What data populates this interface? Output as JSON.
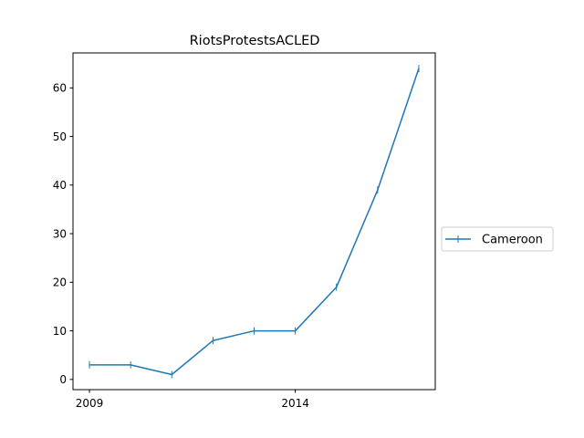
{
  "chart_data": {
    "type": "line",
    "title": "RiotsProtestsACLED",
    "xlabel": "",
    "ylabel": "",
    "x": [
      2009,
      2010,
      2011,
      2012,
      2013,
      2014,
      2015,
      2016,
      2017
    ],
    "x_tick_labels": [
      "2009",
      "2014"
    ],
    "x_ticks": [
      2009,
      2014
    ],
    "y_ticks": [
      0,
      10,
      20,
      30,
      40,
      50,
      60
    ],
    "y_tick_labels": [
      "0",
      "10",
      "20",
      "30",
      "40",
      "50",
      "60"
    ],
    "xlim": [
      2008.6,
      2017.4
    ],
    "ylim": [
      -2.1,
      67.2
    ],
    "grid": false,
    "legend_position": "right-outside",
    "series": [
      {
        "name": "Cameroon",
        "color": "#1f77b4",
        "marker": "vertical-line",
        "values": [
          3,
          3,
          1,
          8,
          10,
          10,
          19,
          39,
          64
        ]
      }
    ]
  }
}
